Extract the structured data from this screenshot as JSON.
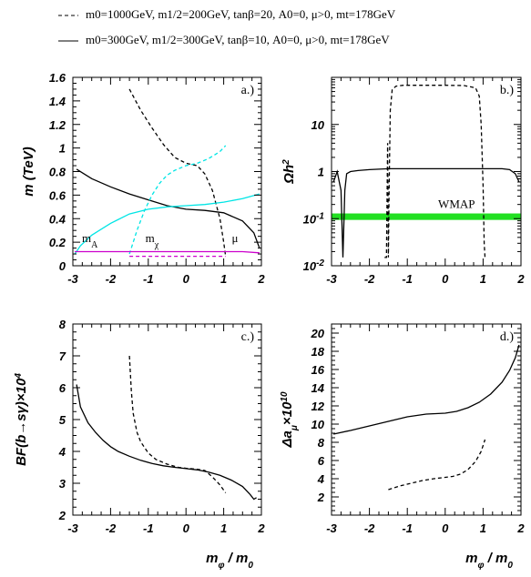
{
  "legend": {
    "dashed": "m0=1000GeV, m1/2=200GeV, tanβ=20, A0=0, μ>0, mt=178GeV",
    "solid": "m0=300GeV, m1/2=300GeV, tanβ=10, A0=0, μ>0, mt=178GeV"
  },
  "chart_data": [
    {
      "id": "a",
      "type": "line",
      "panel_label": "a.)",
      "ylabel": "m (TeV)",
      "xlabel": "",
      "xlim": [
        -3,
        2
      ],
      "ylim": [
        0,
        1.6
      ],
      "xticks": [
        "-3",
        "-2",
        "-1",
        "0",
        "1",
        "2"
      ],
      "yticks": [
        "0",
        "0.2",
        "0.4",
        "0.6",
        "0.8",
        "1",
        "1.2",
        "1.4",
        "1.6"
      ],
      "annotations": [
        {
          "text": "mA",
          "x": -2.55,
          "y": 0.2
        },
        {
          "text": "mχ",
          "x": -0.9,
          "y": 0.2
        },
        {
          "text": "μ",
          "x": 1.3,
          "y": 0.2
        }
      ],
      "series": [
        {
          "color": "#000000",
          "style": "solid",
          "x": [
            -2.9,
            -2.5,
            -2.0,
            -1.5,
            -1.0,
            -0.5,
            0.0,
            0.5,
            1.0,
            1.5,
            1.8,
            1.95
          ],
          "y": [
            0.82,
            0.74,
            0.67,
            0.61,
            0.56,
            0.51,
            0.48,
            0.47,
            0.45,
            0.38,
            0.28,
            0.15
          ]
        },
        {
          "color": "#000000",
          "style": "dashed",
          "x": [
            -1.5,
            -1.2,
            -0.9,
            -0.6,
            -0.3,
            0.0,
            0.3,
            0.5,
            0.7,
            0.9,
            1.0,
            1.05
          ],
          "y": [
            1.5,
            1.32,
            1.17,
            1.03,
            0.92,
            0.87,
            0.85,
            0.78,
            0.64,
            0.4,
            0.2,
            0.08
          ]
        },
        {
          "color": "#00e5e5",
          "style": "solid",
          "x": [
            -2.95,
            -2.8,
            -2.5,
            -2.0,
            -1.5,
            -1.0,
            -0.5,
            0.0,
            0.5,
            1.0,
            1.5,
            1.95
          ],
          "y": [
            0.1,
            0.17,
            0.26,
            0.36,
            0.44,
            0.48,
            0.5,
            0.51,
            0.52,
            0.54,
            0.57,
            0.61
          ]
        },
        {
          "color": "#00e5e5",
          "style": "dashed",
          "x": [
            -1.5,
            -1.3,
            -1.1,
            -0.9,
            -0.7,
            -0.5,
            -0.3,
            0.0,
            0.3,
            0.6,
            0.9,
            1.05
          ],
          "y": [
            0.1,
            0.3,
            0.47,
            0.6,
            0.7,
            0.77,
            0.81,
            0.85,
            0.87,
            0.91,
            0.97,
            1.02
          ]
        },
        {
          "color": "#cc00cc",
          "style": "solid",
          "x": [
            -2.95,
            -2.5,
            -2.0,
            -1.5,
            -1.0,
            -0.5,
            0.0,
            0.5,
            1.0,
            1.5,
            1.95
          ],
          "y": [
            0.12,
            0.12,
            0.12,
            0.12,
            0.12,
            0.12,
            0.12,
            0.12,
            0.12,
            0.12,
            0.11
          ]
        },
        {
          "color": "#cc00cc",
          "style": "dashed",
          "x": [
            -1.5,
            -1.0,
            -0.5,
            0.0,
            0.5,
            1.0,
            1.05
          ],
          "y": [
            0.08,
            0.08,
            0.08,
            0.08,
            0.08,
            0.08,
            0.08
          ]
        }
      ]
    },
    {
      "id": "b",
      "type": "line",
      "panel_label": "b.)",
      "ylabel": "Ωh²",
      "xlabel": "",
      "xlim": [
        -3,
        2
      ],
      "yscale": "log",
      "ylim": [
        0.01,
        100
      ],
      "xticks": [
        "-3",
        "-2",
        "-1",
        "0",
        "1",
        "2"
      ],
      "yticks": [
        {
          "value": 0.01,
          "label": "10",
          "exp": "-2"
        },
        {
          "value": 0.1,
          "label": "10",
          "exp": "-1"
        },
        {
          "value": 1,
          "label": "1",
          "exp": ""
        },
        {
          "value": 10,
          "label": "10",
          "exp": ""
        }
      ],
      "band": {
        "label": "WMAP",
        "y1": 0.094,
        "y2": 0.129,
        "color": "#22e022"
      },
      "series": [
        {
          "color": "#000000",
          "style": "solid",
          "x": [
            -2.95,
            -2.85,
            -2.75,
            -2.7,
            -2.65,
            -2.6,
            -2.5,
            -2.3,
            -2.0,
            -1.5,
            -1.0,
            0.0,
            1.0,
            1.5,
            1.7,
            1.85,
            1.95
          ],
          "y": [
            0.6,
            1.0,
            0.4,
            0.015,
            0.4,
            0.9,
            1.0,
            1.05,
            1.1,
            1.15,
            1.15,
            1.15,
            1.15,
            1.15,
            1.1,
            0.9,
            0.6
          ]
        },
        {
          "color": "#000000",
          "style": "dashed",
          "x": [
            -1.6,
            -1.55,
            -1.52,
            -1.5,
            -1.48,
            -1.45,
            -1.4,
            -1.3,
            -1.1,
            -0.8,
            -0.5,
            0.0,
            0.5,
            0.8,
            0.9,
            0.95,
            1.0,
            1.03,
            1.05
          ],
          "y": [
            0.015,
            0.015,
            4.0,
            0.015,
            0.4,
            20,
            55,
            65,
            68,
            68,
            68,
            68,
            67,
            60,
            40,
            10,
            0.5,
            0.03,
            0.015
          ]
        }
      ]
    },
    {
      "id": "c",
      "type": "line",
      "panel_label": "c.)",
      "ylabel": "BF(b→sγ)×10⁴",
      "xlabel": "mφ / m0",
      "xlim": [
        -3,
        2
      ],
      "ylim": [
        2,
        8
      ],
      "xticks": [
        "-3",
        "-2",
        "-1",
        "0",
        "1",
        "2"
      ],
      "yticks": [
        "2",
        "3",
        "4",
        "5",
        "6",
        "7",
        "8"
      ],
      "series": [
        {
          "color": "#000000",
          "style": "solid",
          "x": [
            -2.9,
            -2.8,
            -2.6,
            -2.4,
            -2.2,
            -2.0,
            -1.8,
            -1.5,
            -1.2,
            -0.9,
            -0.6,
            -0.3,
            0.0,
            0.3,
            0.6,
            0.9,
            1.2,
            1.5,
            1.7,
            1.8,
            1.87
          ],
          "y": [
            6.1,
            5.4,
            4.9,
            4.6,
            4.35,
            4.15,
            4.0,
            3.85,
            3.72,
            3.62,
            3.55,
            3.5,
            3.46,
            3.42,
            3.35,
            3.25,
            3.1,
            2.9,
            2.65,
            2.5,
            2.55
          ]
        },
        {
          "color": "#000000",
          "style": "dashed",
          "x": [
            -1.5,
            -1.45,
            -1.4,
            -1.3,
            -1.2,
            -1.0,
            -0.8,
            -0.5,
            -0.2,
            0.0,
            0.3,
            0.5,
            0.7,
            0.9,
            1.05
          ],
          "y": [
            7.0,
            5.9,
            5.2,
            4.6,
            4.3,
            3.95,
            3.75,
            3.6,
            3.5,
            3.47,
            3.44,
            3.4,
            3.2,
            2.95,
            2.7
          ]
        }
      ]
    },
    {
      "id": "d",
      "type": "line",
      "panel_label": "d.)",
      "ylabel": "Δaμ×10¹⁰",
      "xlabel": "mφ / m0",
      "xlim": [
        -3,
        2
      ],
      "ylim": [
        0,
        21
      ],
      "xticks": [
        "-3",
        "-2",
        "-1",
        "0",
        "1",
        "2"
      ],
      "yticks": [
        "2",
        "4",
        "6",
        "8",
        "10",
        "12",
        "14",
        "16",
        "18",
        "20"
      ],
      "series": [
        {
          "color": "#000000",
          "style": "solid",
          "x": [
            -2.95,
            -2.5,
            -2.0,
            -1.5,
            -1.0,
            -0.5,
            0.0,
            0.3,
            0.6,
            0.9,
            1.2,
            1.5,
            1.7,
            1.85,
            1.95
          ],
          "y": [
            8.9,
            9.3,
            9.8,
            10.3,
            10.8,
            11.1,
            11.2,
            11.4,
            11.8,
            12.4,
            13.3,
            14.6,
            15.9,
            17.3,
            18.7
          ]
        },
        {
          "color": "#000000",
          "style": "dashed",
          "x": [
            -1.5,
            -1.2,
            -0.9,
            -0.6,
            -0.3,
            0.0,
            0.2,
            0.4,
            0.6,
            0.8,
            0.95,
            1.05
          ],
          "y": [
            2.8,
            3.2,
            3.5,
            3.8,
            4.0,
            4.15,
            4.25,
            4.5,
            5.0,
            5.9,
            7.0,
            8.3
          ]
        }
      ]
    }
  ]
}
